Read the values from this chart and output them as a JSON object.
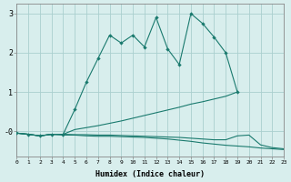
{
  "xlabel": "Humidex (Indice chaleur)",
  "x": [
    0,
    1,
    2,
    3,
    4,
    5,
    6,
    7,
    8,
    9,
    10,
    11,
    12,
    13,
    14,
    15,
    16,
    17,
    18,
    19,
    20,
    21,
    22,
    23
  ],
  "line1_y": [
    -0.05,
    -0.08,
    -0.12,
    -0.08,
    -0.08,
    0.55,
    1.25,
    1.85,
    2.45,
    2.25,
    2.45,
    2.15,
    2.9,
    2.1,
    1.7,
    3.0,
    2.75,
    2.4,
    2.0,
    1.0,
    null,
    null,
    null,
    null
  ],
  "line2_y": [
    -0.05,
    -0.08,
    -0.12,
    -0.08,
    -0.08,
    0.04,
    0.09,
    0.14,
    0.2,
    0.26,
    0.33,
    0.4,
    0.47,
    0.54,
    0.61,
    0.69,
    0.75,
    0.82,
    0.89,
    1.0,
    null,
    null,
    null,
    null
  ],
  "line3_y": [
    -0.05,
    -0.08,
    -0.12,
    -0.08,
    -0.08,
    -0.09,
    -0.09,
    -0.1,
    -0.1,
    -0.11,
    -0.12,
    -0.13,
    -0.14,
    -0.15,
    -0.16,
    -0.18,
    -0.2,
    -0.22,
    -0.22,
    -0.12,
    -0.1,
    -0.35,
    -0.42,
    -0.45
  ],
  "line4_y": [
    -0.05,
    -0.08,
    -0.12,
    -0.08,
    -0.1,
    -0.1,
    -0.12,
    -0.13,
    -0.13,
    -0.14,
    -0.15,
    -0.16,
    -0.18,
    -0.2,
    -0.23,
    -0.26,
    -0.3,
    -0.33,
    -0.36,
    -0.38,
    -0.4,
    -0.43,
    -0.45,
    -0.47
  ],
  "line_color": "#1a7a6e",
  "bg_color": "#d8eeed",
  "grid_color": "#aacfcf",
  "ylim": [
    -0.65,
    3.25
  ],
  "xlim": [
    0,
    23
  ],
  "yticks": [
    0,
    1,
    2,
    3
  ],
  "ytick_labels": [
    "-0",
    "1",
    "2",
    "3"
  ]
}
